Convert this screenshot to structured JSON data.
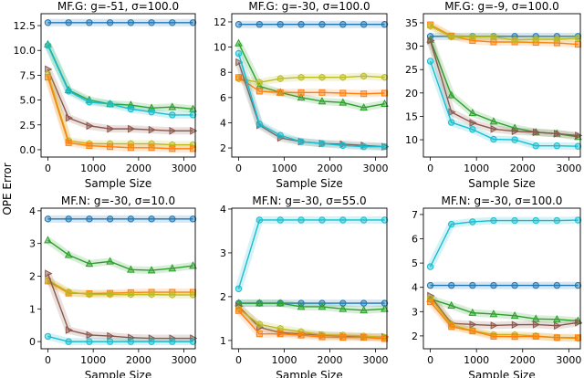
{
  "chart_data": [
    {
      "type": "line",
      "title": "MF.G: g=-51, σ=100.0",
      "xlabel": "Sample Size",
      "x": [
        0,
        457,
        914,
        1371,
        1829,
        2286,
        2743,
        3200
      ],
      "xticks": [
        0,
        1000,
        2000,
        3000
      ],
      "yticks": [
        0.0,
        2.5,
        5.0,
        7.5,
        10.0,
        12.5
      ],
      "ytick_labels": [
        "0.0",
        "2.5",
        "5.0",
        "7.5",
        "10.0",
        "12.5"
      ],
      "xlim": [
        -150,
        3250
      ],
      "ylim": [
        -0.74,
        13.7
      ],
      "series": [
        {
          "color": "#1f77b4",
          "marker": "o",
          "values": [
            12.8,
            12.8,
            12.8,
            12.8,
            12.8,
            12.8,
            12.8,
            12.8
          ]
        },
        {
          "color": "#2ca02c",
          "marker": "^",
          "values": [
            10.6,
            6.0,
            5.0,
            4.6,
            4.5,
            4.2,
            4.3,
            4.1
          ]
        },
        {
          "color": "#17becf",
          "marker": "o",
          "values": [
            10.5,
            5.9,
            4.8,
            4.6,
            4.1,
            3.8,
            3.5,
            3.5
          ]
        },
        {
          "color": "#8c564b",
          "marker": ">",
          "values": [
            8.1,
            3.2,
            2.4,
            2.1,
            2.1,
            2.0,
            1.9,
            1.9
          ]
        },
        {
          "color": "#bcbd22",
          "marker": "h",
          "values": [
            7.6,
            0.9,
            0.6,
            0.6,
            0.6,
            0.6,
            0.5,
            0.5
          ]
        },
        {
          "color": "#ff7f0e",
          "marker": "s",
          "values": [
            7.3,
            0.7,
            0.4,
            0.3,
            0.2,
            0.2,
            0.1,
            0.1
          ]
        }
      ]
    },
    {
      "type": "line",
      "title": "MF.G: g=-30, σ=100.0",
      "xlabel": "Sample Size",
      "x": [
        0,
        457,
        914,
        1371,
        1829,
        2286,
        2743,
        3200
      ],
      "xticks": [
        0,
        1000,
        2000,
        3000
      ],
      "yticks": [
        2,
        4,
        6,
        8,
        10,
        12
      ],
      "ytick_labels": [
        "2",
        "4",
        "6",
        "8",
        "10",
        "12"
      ],
      "xlim": [
        -150,
        3250
      ],
      "ylim": [
        1.28,
        12.65
      ],
      "series": [
        {
          "color": "#1f77b4",
          "marker": "o",
          "values": [
            11.8,
            11.8,
            11.8,
            11.8,
            11.8,
            11.8,
            11.8,
            11.8
          ]
        },
        {
          "color": "#2ca02c",
          "marker": "^",
          "values": [
            10.3,
            6.9,
            6.4,
            6.0,
            5.7,
            5.6,
            5.2,
            5.5
          ]
        },
        {
          "color": "#bcbd22",
          "marker": "h",
          "values": [
            7.5,
            7.2,
            7.5,
            7.6,
            7.6,
            7.6,
            7.7,
            7.6
          ]
        },
        {
          "color": "#ff7f0e",
          "marker": "s",
          "values": [
            7.6,
            6.5,
            6.4,
            6.4,
            6.4,
            6.35,
            6.3,
            6.35
          ]
        },
        {
          "color": "#8c564b",
          "marker": ">",
          "values": [
            8.8,
            3.8,
            2.8,
            2.5,
            2.35,
            2.3,
            2.2,
            2.1
          ]
        },
        {
          "color": "#17becf",
          "marker": "o",
          "values": [
            9.5,
            3.9,
            3.0,
            2.5,
            2.35,
            2.2,
            2.1,
            2.1
          ]
        }
      ]
    },
    {
      "type": "line",
      "title": "MF.G: g=-9, σ=100.0",
      "xlabel": "Sample Size",
      "x": [
        0,
        457,
        914,
        1371,
        1829,
        2286,
        2743,
        3200
      ],
      "xticks": [
        0,
        1000,
        2000,
        3000
      ],
      "yticks": [
        10,
        15,
        20,
        25,
        30,
        35
      ],
      "ytick_labels": [
        "10",
        "15",
        "20",
        "25",
        "30",
        "35"
      ],
      "xlim": [
        -150,
        3250
      ],
      "ylim": [
        6.3,
        36.95
      ],
      "series": [
        {
          "color": "#1f77b4",
          "marker": "o",
          "values": [
            32.1,
            32.1,
            32.1,
            32.1,
            32.1,
            32.1,
            32.1,
            32.1
          ]
        },
        {
          "color": "#ff7f0e",
          "marker": "s",
          "values": [
            34.6,
            32.2,
            31.2,
            30.9,
            30.9,
            30.8,
            30.7,
            30.4
          ]
        },
        {
          "color": "#bcbd22",
          "marker": "h",
          "values": [
            34.3,
            32.0,
            32.0,
            32.0,
            31.3,
            31.5,
            31.5,
            31.7
          ]
        },
        {
          "color": "#2ca02c",
          "marker": "^",
          "values": [
            31.4,
            19.5,
            15.7,
            13.9,
            12.5,
            11.6,
            11.3,
            10.6
          ]
        },
        {
          "color": "#8c564b",
          "marker": ">",
          "values": [
            31.2,
            15.9,
            13.6,
            12.3,
            11.8,
            11.6,
            11.3,
            10.9
          ]
        },
        {
          "color": "#17becf",
          "marker": "o",
          "values": [
            26.8,
            13.7,
            12.2,
            10.1,
            10.0,
            8.7,
            8.7,
            8.6
          ]
        }
      ]
    },
    {
      "type": "line",
      "title": "MF.N: g=-30, σ=10.0",
      "xlabel": "Sample Size",
      "x": [
        0,
        457,
        914,
        1371,
        1829,
        2286,
        2743,
        3200
      ],
      "xticks": [
        0,
        1000,
        2000,
        3000
      ],
      "yticks": [
        0,
        1,
        2,
        3,
        4
      ],
      "ytick_labels": [
        "0",
        "1",
        "2",
        "3",
        "4"
      ],
      "xlim": [
        -150,
        3250
      ],
      "ylim": [
        -0.22,
        4.08
      ],
      "series": [
        {
          "color": "#1f77b4",
          "marker": "o",
          "values": [
            3.75,
            3.75,
            3.75,
            3.75,
            3.75,
            3.75,
            3.75,
            3.75
          ]
        },
        {
          "color": "#2ca02c",
          "marker": "^",
          "values": [
            3.1,
            2.65,
            2.38,
            2.45,
            2.2,
            2.18,
            2.24,
            2.32
          ]
        },
        {
          "color": "#ff7f0e",
          "marker": "s",
          "values": [
            1.85,
            1.48,
            1.47,
            1.48,
            1.5,
            1.51,
            1.51,
            1.51
          ]
        },
        {
          "color": "#bcbd22",
          "marker": "h",
          "values": [
            1.88,
            1.52,
            1.44,
            1.44,
            1.44,
            1.44,
            1.43,
            1.43
          ]
        },
        {
          "color": "#8c564b",
          "marker": ">",
          "values": [
            2.08,
            0.35,
            0.2,
            0.17,
            0.12,
            0.1,
            0.1,
            0.1
          ]
        },
        {
          "color": "#17becf",
          "marker": "o",
          "values": [
            0.16,
            0.0,
            0.0,
            0.0,
            0.0,
            0.0,
            0.0,
            0.0
          ]
        }
      ]
    },
    {
      "type": "line",
      "title": "MF.N: g=-30, σ=55.0",
      "xlabel": "Sample Size",
      "x": [
        0,
        457,
        914,
        1371,
        1829,
        2286,
        2743,
        3200
      ],
      "xticks": [
        0,
        1000,
        2000,
        3000
      ],
      "yticks": [
        1,
        2,
        3,
        4
      ],
      "ytick_labels": [
        "1",
        "2",
        "3",
        "4"
      ],
      "xlim": [
        -150,
        3250
      ],
      "ylim": [
        0.81,
        4.02
      ],
      "series": [
        {
          "color": "#17becf",
          "marker": "o",
          "values": [
            2.18,
            3.75,
            3.75,
            3.75,
            3.75,
            3.75,
            3.75,
            3.75
          ]
        },
        {
          "color": "#1f77b4",
          "marker": "o",
          "values": [
            1.85,
            1.85,
            1.85,
            1.85,
            1.85,
            1.85,
            1.85,
            1.85
          ]
        },
        {
          "color": "#2ca02c",
          "marker": "^",
          "values": [
            1.85,
            1.85,
            1.85,
            1.77,
            1.77,
            1.72,
            1.69,
            1.72
          ]
        },
        {
          "color": "#8c564b",
          "marker": ">",
          "values": [
            1.78,
            1.3,
            1.18,
            1.15,
            1.12,
            1.1,
            1.08,
            1.08
          ]
        },
        {
          "color": "#bcbd22",
          "marker": "h",
          "values": [
            1.72,
            1.37,
            1.27,
            1.2,
            1.13,
            1.12,
            1.1,
            1.07
          ]
        },
        {
          "color": "#ff7f0e",
          "marker": "s",
          "values": [
            1.68,
            1.15,
            1.15,
            1.12,
            1.08,
            1.07,
            1.07,
            1.04
          ]
        }
      ]
    },
    {
      "type": "line",
      "title": "MF.N: g=-30, σ=100.0",
      "xlabel": "Sample Size",
      "x": [
        0,
        457,
        914,
        1371,
        1829,
        2286,
        2743,
        3200
      ],
      "xticks": [
        0,
        1000,
        2000,
        3000
      ],
      "yticks": [
        2,
        3,
        4,
        5,
        6,
        7
      ],
      "ytick_labels": [
        "2",
        "3",
        "4",
        "5",
        "6",
        "7"
      ],
      "xlim": [
        -150,
        3250
      ],
      "ylim": [
        1.47,
        7.26
      ],
      "series": [
        {
          "color": "#17becf",
          "marker": "o",
          "values": [
            4.85,
            6.6,
            6.7,
            6.75,
            6.75,
            6.75,
            6.75,
            6.77
          ]
        },
        {
          "color": "#1f77b4",
          "marker": "o",
          "values": [
            4.08,
            4.08,
            4.08,
            4.08,
            4.08,
            4.08,
            4.08,
            4.08
          ]
        },
        {
          "color": "#2ca02c",
          "marker": "^",
          "values": [
            3.52,
            3.25,
            2.95,
            2.9,
            2.83,
            2.7,
            2.68,
            2.62
          ]
        },
        {
          "color": "#8c564b",
          "marker": ">",
          "values": [
            3.65,
            2.52,
            2.47,
            2.43,
            2.46,
            2.47,
            2.42,
            2.55
          ]
        },
        {
          "color": "#bcbd22",
          "marker": "h",
          "values": [
            3.55,
            2.45,
            2.22,
            2.05,
            2.05,
            2.0,
            1.93,
            1.9
          ]
        },
        {
          "color": "#ff7f0e",
          "marker": "s",
          "values": [
            3.4,
            2.38,
            2.2,
            1.98,
            1.97,
            1.98,
            1.93,
            1.93
          ]
        }
      ]
    }
  ],
  "shared": {
    "ylabel": "OPE Error"
  }
}
